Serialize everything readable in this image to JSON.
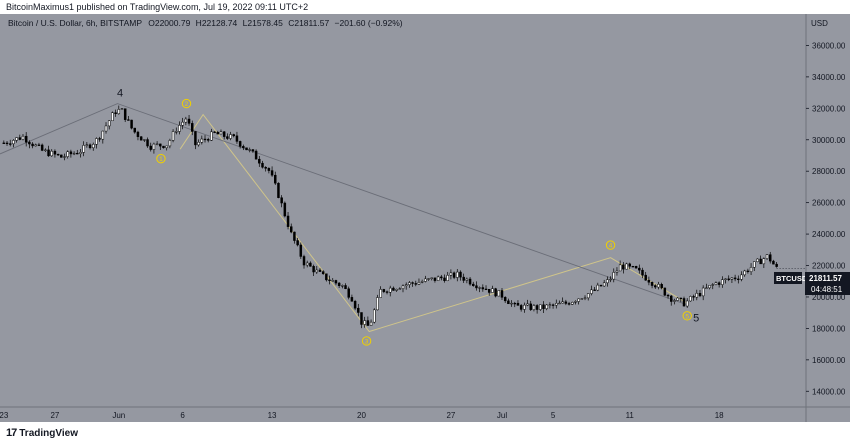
{
  "header": {
    "publish_line": "BitcoinMaximus1 published on TradingView.com, Jul 19, 2022 09:11 UTC+2"
  },
  "legend": {
    "symbol": "Bitcoin / U.S. Dollar, 6h, BITSTAMP",
    "open_label": "O",
    "open": "22000.79",
    "high_label": "H",
    "high": "22128.74",
    "low_label": "L",
    "low": "21578.45",
    "close_label": "C",
    "close": "21811.57",
    "change": "−201.60 (−0.92%)"
  },
  "price_axis": {
    "currency": "USD",
    "symbol_badge": "BTCUSD",
    "last_price": "21811.57",
    "countdown": "04:48:51"
  },
  "footer": {
    "logo": "17",
    "brand": "TradingView"
  },
  "colors": {
    "background": "#9598a1",
    "candle_up": "#ffffff",
    "candle_down": "#000000",
    "wave_line": "#cfc48a",
    "trend_line": "#6b6e78",
    "wave_marker": "#f0d000"
  },
  "chart_data": {
    "type": "candlestick",
    "title": "Bitcoin / U.S. Dollar, 6h, BITSTAMP",
    "ylabel": "USD",
    "ylim": [
      13000,
      38000
    ],
    "y_ticks": [
      14000,
      16000,
      18000,
      20000,
      22000,
      24000,
      26000,
      28000,
      30000,
      32000,
      34000,
      36000
    ],
    "y_tick_labels": [
      "14000.00",
      "16000.00",
      "18000.00",
      "20000.00",
      "22000.00",
      "24000.00",
      "26000.00",
      "28000.00",
      "30000.00",
      "32000.00",
      "34000.00",
      "36000.00"
    ],
    "x_ticks": [
      {
        "label": "23",
        "day": 0
      },
      {
        "label": "27",
        "day": 4
      },
      {
        "label": "Jun",
        "day": 9
      },
      {
        "label": "6",
        "day": 14
      },
      {
        "label": "13",
        "day": 21
      },
      {
        "label": "20",
        "day": 28
      },
      {
        "label": "27",
        "day": 35
      },
      {
        "label": "Jul",
        "day": 39
      },
      {
        "label": "5",
        "day": 43
      },
      {
        "label": "11",
        "day": 49
      },
      {
        "label": "18",
        "day": 56
      }
    ],
    "x_range_days": [
      -0.3,
      62.8
    ],
    "price_path": [
      [
        0,
        29800
      ],
      [
        1.5,
        30200
      ],
      [
        3,
        29300
      ],
      [
        4.5,
        28900
      ],
      [
        6,
        29300
      ],
      [
        7.3,
        30000
      ],
      [
        8.7,
        31800
      ],
      [
        9.2,
        31900
      ],
      [
        10.1,
        30600
      ],
      [
        11.5,
        29600
      ],
      [
        12.8,
        29700
      ],
      [
        13.5,
        30700
      ],
      [
        14.3,
        31400
      ],
      [
        15,
        29700
      ],
      [
        16.5,
        30400
      ],
      [
        18,
        30100
      ],
      [
        19.5,
        29100
      ],
      [
        20.8,
        28000
      ],
      [
        21.5,
        26500
      ],
      [
        22.5,
        24000
      ],
      [
        23.5,
        22200
      ],
      [
        25,
        21300
      ],
      [
        26.5,
        20700
      ],
      [
        27.3,
        19900
      ],
      [
        28,
        18400
      ],
      [
        28.6,
        18100
      ],
      [
        29.5,
        20400
      ],
      [
        31.5,
        20800
      ],
      [
        33.5,
        21100
      ],
      [
        35.5,
        21400
      ],
      [
        37,
        20800
      ],
      [
        39,
        20100
      ],
      [
        40,
        19400
      ],
      [
        42,
        19300
      ],
      [
        44,
        19600
      ],
      [
        46,
        20300
      ],
      [
        47.3,
        21000
      ],
      [
        48.3,
        22000
      ],
      [
        49.5,
        21700
      ],
      [
        51,
        20800
      ],
      [
        52.3,
        19900
      ],
      [
        53.3,
        19600
      ],
      [
        54.4,
        20200
      ],
      [
        55.8,
        20900
      ],
      [
        57.5,
        21300
      ],
      [
        59,
        22200
      ],
      [
        59.8,
        22600
      ],
      [
        60.5,
        21811
      ]
    ],
    "series": [
      {
        "name": "wave",
        "points": [
          [
            13.8,
            29400
          ],
          [
            15.6,
            31600
          ],
          [
            28.6,
            17800
          ],
          [
            47.5,
            22500
          ],
          [
            53.5,
            19600
          ]
        ]
      },
      {
        "name": "trend",
        "points": [
          [
            -0.3,
            29100
          ],
          [
            8.9,
            32300
          ],
          [
            53.5,
            19500
          ]
        ]
      }
    ],
    "wave_labels": [
      {
        "label": "4",
        "day": 9.1,
        "price": 33000,
        "style": "text"
      },
      {
        "label": "1",
        "day": 12.3,
        "price": 28800,
        "style": "circle"
      },
      {
        "label": "2",
        "day": 14.3,
        "price": 32300,
        "style": "circle"
      },
      {
        "label": "3",
        "day": 28.4,
        "price": 17200,
        "style": "circle"
      },
      {
        "label": "4",
        "day": 47.5,
        "price": 23300,
        "style": "circle"
      },
      {
        "label": "5",
        "day": 53.5,
        "price": 18800,
        "style": "circle"
      },
      {
        "label": "5",
        "day": 54.2,
        "price": 18700,
        "style": "text"
      }
    ]
  }
}
